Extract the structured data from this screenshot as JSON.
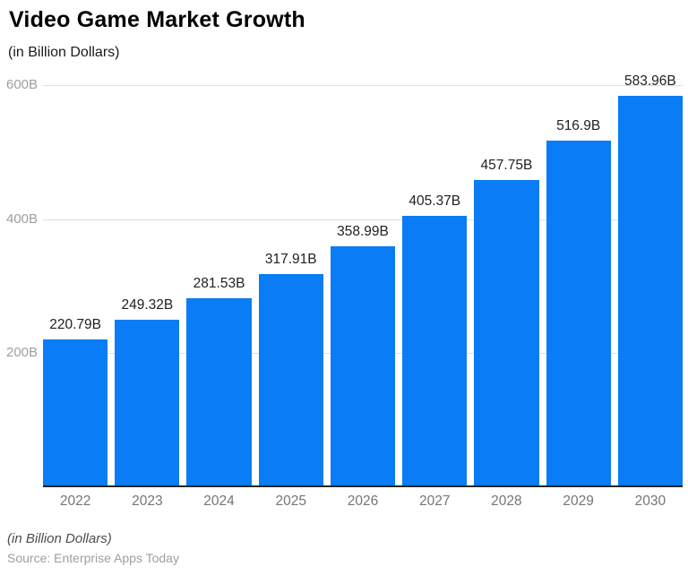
{
  "header": {
    "title": "Video Game Market Growth",
    "subtitle": "(in Billion Dollars)"
  },
  "footer": {
    "note": "(in Billion Dollars)",
    "source": "Source: Enterprise Apps Today"
  },
  "chart_data": {
    "type": "bar",
    "title": "Video Game Market Growth",
    "subtitle": "(in Billion Dollars)",
    "categories": [
      "2022",
      "2023",
      "2024",
      "2025",
      "2026",
      "2027",
      "2028",
      "2029",
      "2030"
    ],
    "values": [
      220.79,
      249.32,
      281.53,
      317.91,
      358.99,
      405.37,
      457.75,
      516.9,
      583.96
    ],
    "value_labels": [
      "220.79B",
      "249.32B",
      "281.53B",
      "317.91B",
      "358.99B",
      "405.37B",
      "457.75B",
      "516.9B",
      "583.96B"
    ],
    "xlabel": "",
    "ylabel": "(in Billion Dollars)",
    "y_ticks": [
      200,
      400,
      600
    ],
    "y_tick_labels": [
      "200B",
      "400B",
      "600B"
    ],
    "ylim": [
      0,
      620
    ],
    "grid": true,
    "legend": false,
    "bar_color": "#0a7cf5",
    "gridline_color": "#e0e0e0",
    "baseline_color": "#262626",
    "tick_label_color": "#9e9e9e",
    "xtick_label_color": "#757575",
    "value_label_color": "#212121"
  }
}
